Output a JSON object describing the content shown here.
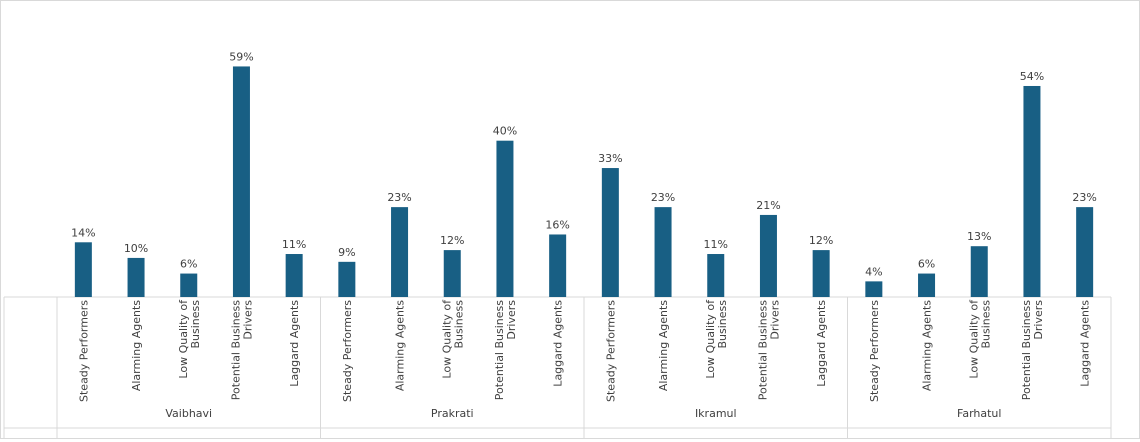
{
  "chart_data": {
    "type": "bar",
    "title": "",
    "xlabel": "",
    "ylabel": "",
    "ylim": [
      0,
      65
    ],
    "value_suffix": "%",
    "groups": [
      {
        "name": "Vaibhavi",
        "categories": [
          "Steady Performers",
          "Alarming Agents",
          "Low Quality of Business",
          "Potential Business Drivers",
          "Laggard Agents"
        ],
        "values": [
          14,
          10,
          6,
          59,
          11
        ]
      },
      {
        "name": "Prakrati",
        "categories": [
          "Steady Performers",
          "Alarming Agents",
          "Low Quality of Business",
          "Potential Business Drivers",
          "Laggard Agents"
        ],
        "values": [
          9,
          23,
          12,
          40,
          16
        ]
      },
      {
        "name": "Ikramul",
        "categories": [
          "Steady Performers",
          "Alarming Agents",
          "Low Quality of Business",
          "Potential Business Drivers",
          "Laggard Agents"
        ],
        "values": [
          33,
          23,
          11,
          21,
          12
        ]
      },
      {
        "name": "Farhatul",
        "categories": [
          "Steady Performers",
          "Alarming Agents",
          "Low Quality of Business",
          "Potential Business Drivers",
          "Laggard Agents"
        ],
        "values": [
          4,
          6,
          13,
          54,
          23
        ]
      }
    ],
    "colors": {
      "bar": "#185f84",
      "label": "#404040",
      "grid": "#d9d9d9"
    },
    "grid": false,
    "legend": "none"
  }
}
